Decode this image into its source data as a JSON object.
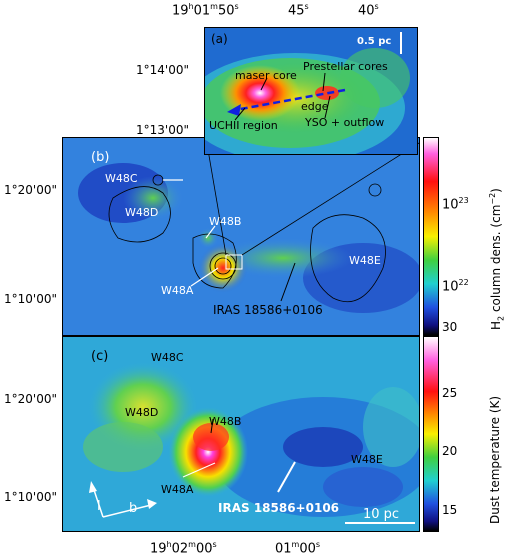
{
  "top_axis": {
    "ra_ticks": [
      "19h01m50s",
      "45s",
      "40s"
    ]
  },
  "panel_a": {
    "label": "(a)",
    "scalebar": "0.5 pc",
    "dec_ticks": [
      "1°14'00\"",
      "1°13'00\""
    ],
    "annotations": {
      "prestellar": "Prestellar cores",
      "maser": "maser core",
      "edge": "edge",
      "uchii": "UCHII region",
      "yso": "YSO + outflow"
    }
  },
  "panel_b": {
    "label": "(b)",
    "dec_ticks": [
      "1°20'00\"",
      "1°10'00\""
    ],
    "labels": {
      "w48c": "W48C",
      "w48d": "W48D",
      "w48b": "W48B",
      "w48a": "W48A",
      "w48e": "W48E",
      "iras": "IRAS 18586+0106"
    },
    "colorbar": {
      "title": "H2 column dens. (cm-2)",
      "ticks": [
        "10^23",
        "10^22"
      ]
    }
  },
  "panel_c": {
    "label": "(c)",
    "dec_ticks": [
      "1°20'00\"",
      "1°10'00\""
    ],
    "labels": {
      "w48c": "W48C",
      "w48d": "W48D",
      "w48b": "W48B",
      "w48a": "W48A",
      "w48e": "W48E",
      "iras": "IRAS 18586+0106"
    },
    "scalebar": "10 pc",
    "compass": {
      "l": "l",
      "b": "b"
    },
    "colorbar": {
      "title": "Dust temperature (K)",
      "ticks": [
        "30",
        "25",
        "20",
        "15"
      ]
    },
    "ra_ticks": [
      "19h02m00s",
      "01m00s"
    ]
  }
}
